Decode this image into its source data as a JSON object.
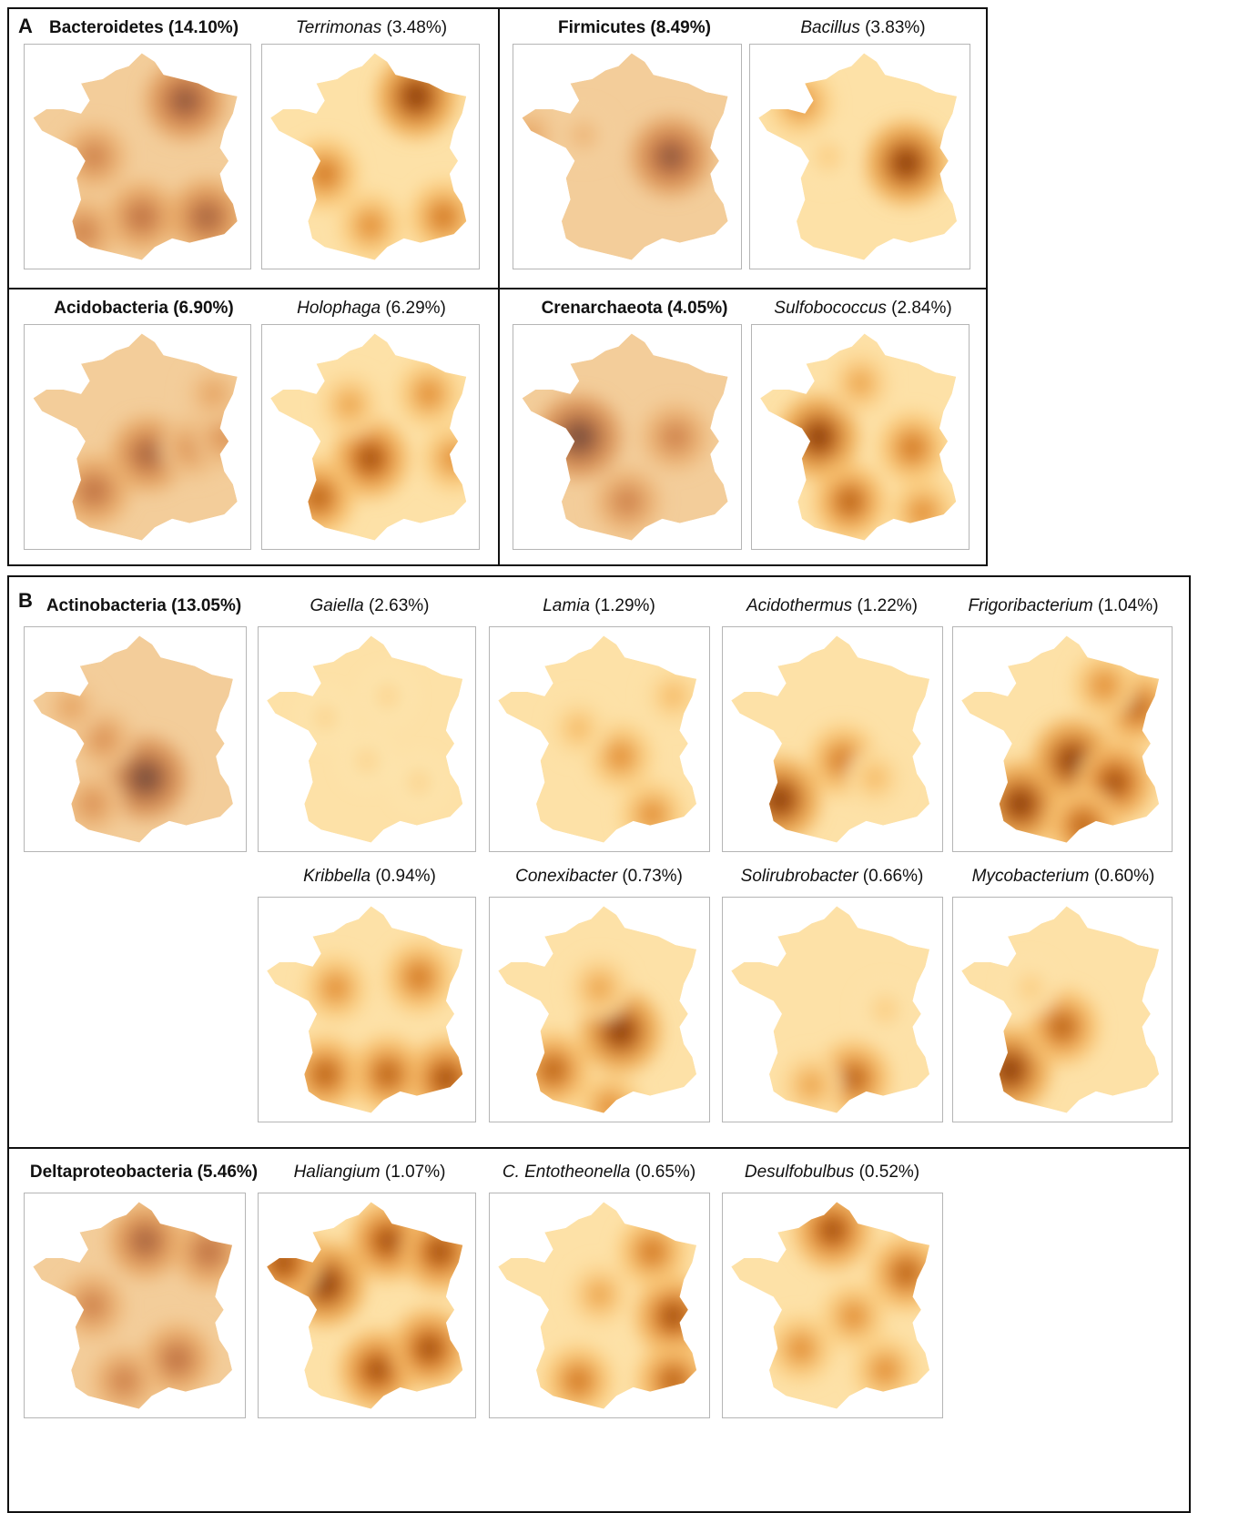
{
  "panels": [
    {
      "letter": "A"
    },
    {
      "letter": "B"
    }
  ],
  "maps": [
    {
      "id": "a1",
      "taxon": "Bacteroidetes",
      "pct": "(14.10%)",
      "style": "phylum",
      "hot": [
        [
          0.72,
          0.24,
          0.9
        ],
        [
          0.3,
          0.5,
          0.6
        ],
        [
          0.52,
          0.78,
          0.7
        ],
        [
          0.82,
          0.78,
          0.8
        ],
        [
          0.25,
          0.85,
          0.6
        ]
      ]
    },
    {
      "id": "a2",
      "taxon": "Terrimonas",
      "pct": "(3.48%)",
      "style": "genus",
      "hot": [
        [
          0.72,
          0.22,
          1.0
        ],
        [
          0.28,
          0.58,
          0.7
        ],
        [
          0.5,
          0.82,
          0.6
        ],
        [
          0.85,
          0.78,
          0.7
        ]
      ]
    },
    {
      "id": "a3",
      "taxon": "Firmicutes",
      "pct": "(8.49%)",
      "style": "phylum",
      "hot": [
        [
          0.7,
          0.5,
          0.9
        ],
        [
          0.3,
          0.4,
          0.3
        ],
        [
          0.05,
          0.4,
          0.4
        ]
      ]
    },
    {
      "id": "a4",
      "taxon": "Bacillus",
      "pct": "(3.83%)",
      "style": "genus",
      "hot": [
        [
          0.72,
          0.53,
          1.0
        ],
        [
          0.22,
          0.25,
          0.6
        ],
        [
          0.35,
          0.5,
          0.3
        ]
      ]
    },
    {
      "id": "a5",
      "taxon": "Acidobacteria",
      "pct": "(6.90%)",
      "style": "phylum",
      "hot": [
        [
          0.55,
          0.58,
          0.8
        ],
        [
          0.3,
          0.75,
          0.7
        ],
        [
          0.75,
          0.55,
          0.5
        ],
        [
          0.9,
          0.5,
          0.5
        ],
        [
          0.85,
          0.3,
          0.4
        ]
      ]
    },
    {
      "id": "a6",
      "taxon": "Holophaga",
      "pct": "(6.29%)",
      "style": "genus",
      "hot": [
        [
          0.5,
          0.6,
          0.9
        ],
        [
          0.25,
          0.78,
          0.8
        ],
        [
          0.78,
          0.3,
          0.6
        ],
        [
          0.9,
          0.6,
          0.6
        ],
        [
          0.4,
          0.35,
          0.5
        ]
      ]
    },
    {
      "id": "a7",
      "taxon": "Crenarchaeota",
      "pct": "(4.05%)",
      "style": "phylum",
      "hot": [
        [
          0.28,
          0.5,
          1.0
        ],
        [
          0.72,
          0.5,
          0.6
        ],
        [
          0.5,
          0.8,
          0.6
        ]
      ]
    },
    {
      "id": "a8",
      "taxon": "Sulfobococcus",
      "pct": "(2.84%)",
      "style": "genus",
      "hot": [
        [
          0.3,
          0.5,
          1.0
        ],
        [
          0.75,
          0.55,
          0.7
        ],
        [
          0.45,
          0.8,
          0.8
        ],
        [
          0.8,
          0.85,
          0.6
        ],
        [
          0.5,
          0.25,
          0.5
        ]
      ]
    },
    {
      "id": "b1",
      "taxon": "Actinobacteria",
      "pct": "(13.05%)",
      "style": "phylum",
      "hot": [
        [
          0.55,
          0.68,
          1.0
        ],
        [
          0.35,
          0.5,
          0.5
        ],
        [
          0.3,
          0.8,
          0.5
        ],
        [
          0.2,
          0.35,
          0.4
        ]
      ]
    },
    {
      "id": "b2",
      "taxon": "Gaiella",
      "pct": "(2.63%)",
      "style": "genus",
      "hot": [
        [
          0.3,
          0.4,
          0.25
        ],
        [
          0.6,
          0.3,
          0.25
        ],
        [
          0.5,
          0.6,
          0.25
        ],
        [
          0.75,
          0.7,
          0.25
        ]
      ]
    },
    {
      "id": "b3",
      "taxon": "Lamia",
      "pct": "(1.29%)",
      "style": "genus",
      "hot": [
        [
          0.6,
          0.58,
          0.6
        ],
        [
          0.75,
          0.85,
          0.6
        ],
        [
          0.4,
          0.45,
          0.4
        ],
        [
          0.85,
          0.3,
          0.4
        ]
      ]
    },
    {
      "id": "b4",
      "taxon": "Acidothermus",
      "pct": "(1.22%)",
      "style": "genus",
      "hot": [
        [
          0.25,
          0.78,
          1.0
        ],
        [
          0.55,
          0.6,
          0.7
        ],
        [
          0.7,
          0.68,
          0.4
        ]
      ]
    },
    {
      "id": "b5",
      "taxon": "Frigoribacterium",
      "pct": "(1.04%)",
      "style": "genus",
      "hot": [
        [
          0.55,
          0.6,
          1.0
        ],
        [
          0.3,
          0.8,
          1.0
        ],
        [
          0.75,
          0.7,
          0.9
        ],
        [
          0.85,
          0.35,
          0.8
        ],
        [
          0.7,
          0.25,
          0.6
        ],
        [
          0.6,
          0.9,
          0.8
        ]
      ]
    },
    {
      "id": "b6",
      "taxon": "Kribbella",
      "pct": "(0.94%)",
      "style": "genus",
      "hot": [
        [
          0.3,
          0.8,
          0.8
        ],
        [
          0.6,
          0.8,
          0.8
        ],
        [
          0.88,
          0.82,
          0.9
        ],
        [
          0.75,
          0.35,
          0.7
        ],
        [
          0.35,
          0.4,
          0.6
        ]
      ]
    },
    {
      "id": "b7",
      "taxon": "Conexibacter",
      "pct": "(0.73%)",
      "style": "genus",
      "hot": [
        [
          0.6,
          0.6,
          1.0
        ],
        [
          0.28,
          0.78,
          0.8
        ],
        [
          0.55,
          0.95,
          0.6
        ],
        [
          0.5,
          0.4,
          0.5
        ]
      ]
    },
    {
      "id": "b8",
      "taxon": "Solirubrobacter",
      "pct": "(0.66%)",
      "style": "genus",
      "hot": [
        [
          0.6,
          0.82,
          0.8
        ],
        [
          0.4,
          0.85,
          0.5
        ],
        [
          0.75,
          0.5,
          0.3
        ]
      ]
    },
    {
      "id": "b9",
      "taxon": "Mycobacterium",
      "pct": "(0.60%)",
      "style": "genus",
      "hot": [
        [
          0.25,
          0.78,
          1.0
        ],
        [
          0.5,
          0.58,
          0.8
        ],
        [
          0.35,
          0.4,
          0.3
        ]
      ]
    },
    {
      "id": "b10",
      "taxon": "Deltaproteobacteria",
      "pct": "(5.46%)",
      "style": "phylum",
      "hot": [
        [
          0.55,
          0.2,
          0.8
        ],
        [
          0.85,
          0.25,
          0.7
        ],
        [
          0.3,
          0.5,
          0.6
        ],
        [
          0.7,
          0.75,
          0.7
        ],
        [
          0.45,
          0.85,
          0.6
        ]
      ]
    },
    {
      "id": "b11",
      "taxon": "Haliangium",
      "pct": "(1.07%)",
      "style": "genus",
      "hot": [
        [
          0.3,
          0.4,
          1.0
        ],
        [
          0.6,
          0.2,
          0.9
        ],
        [
          0.85,
          0.25,
          0.9
        ],
        [
          0.55,
          0.8,
          0.9
        ],
        [
          0.8,
          0.7,
          0.9
        ],
        [
          0.1,
          0.3,
          0.9
        ]
      ]
    },
    {
      "id": "b12",
      "taxon": "C. Entotheonella",
      "pct": "(0.65%)",
      "style": "genus",
      "hot": [
        [
          0.85,
          0.55,
          0.9
        ],
        [
          0.75,
          0.25,
          0.7
        ],
        [
          0.4,
          0.85,
          0.7
        ],
        [
          0.85,
          0.85,
          0.8
        ],
        [
          0.5,
          0.45,
          0.5
        ]
      ]
    },
    {
      "id": "b13",
      "taxon": "Desulfobulbus",
      "pct": "(0.52%)",
      "style": "genus",
      "hot": [
        [
          0.5,
          0.15,
          0.9
        ],
        [
          0.85,
          0.35,
          0.8
        ],
        [
          0.6,
          0.55,
          0.6
        ],
        [
          0.35,
          0.7,
          0.6
        ],
        [
          0.75,
          0.8,
          0.6
        ]
      ]
    }
  ]
}
